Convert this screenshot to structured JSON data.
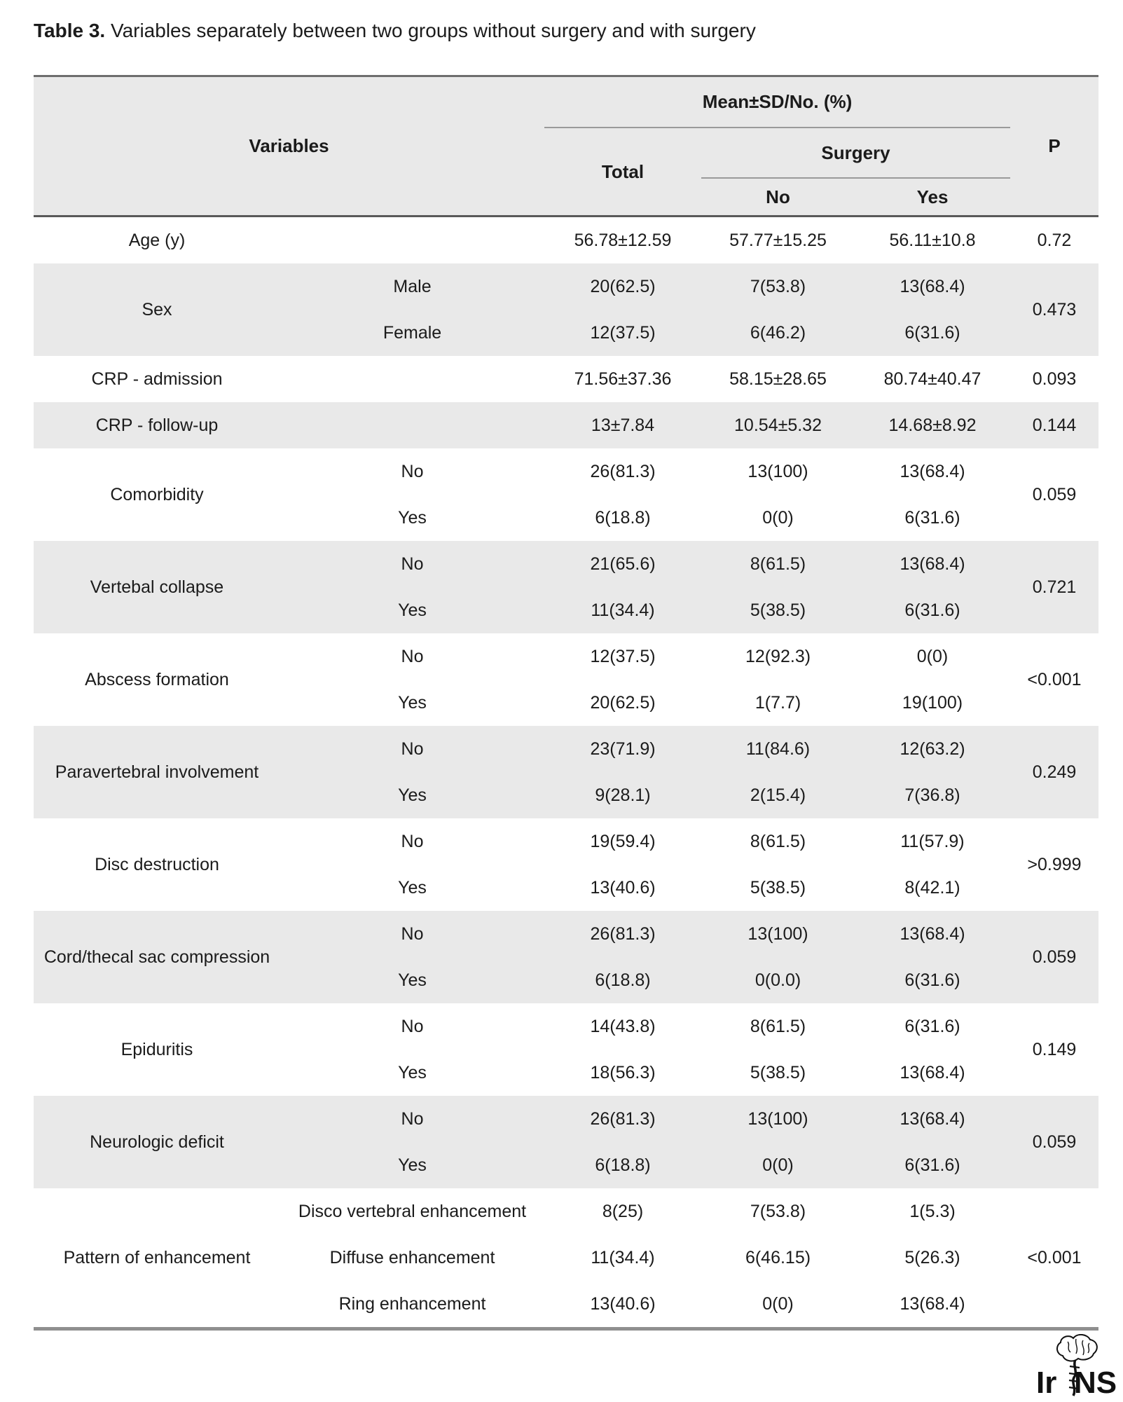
{
  "title": {
    "prefix": "Table 3.",
    "text": " Variables separately between two groups without surgery and with surgery"
  },
  "table": {
    "header": {
      "variables": "Variables",
      "mean_sd": "Mean±SD/No. (%)",
      "total": "Total",
      "surgery": "Surgery",
      "no": "No",
      "yes": "Yes",
      "p": "P"
    },
    "groups": [
      {
        "name": "Age (y)",
        "shaded": false,
        "p": "0.72",
        "rows": [
          {
            "label": "",
            "total": "56.78±12.59",
            "no": "57.77±15.25",
            "yes": "56.11±10.8"
          }
        ]
      },
      {
        "name": "Sex",
        "shaded": true,
        "p": "0.473",
        "rows": [
          {
            "label": "Male",
            "total": "20(62.5)",
            "no": "7(53.8)",
            "yes": "13(68.4)"
          },
          {
            "label": "Female",
            "total": "12(37.5)",
            "no": "6(46.2)",
            "yes": "6(31.6)"
          }
        ]
      },
      {
        "name": "CRP - admission",
        "shaded": false,
        "p": "0.093",
        "rows": [
          {
            "label": "",
            "total": "71.56±37.36",
            "no": "58.15±28.65",
            "yes": "80.74±40.47"
          }
        ]
      },
      {
        "name": "CRP - follow-up",
        "shaded": true,
        "p": "0.144",
        "rows": [
          {
            "label": "",
            "total": "13±7.84",
            "no": "10.54±5.32",
            "yes": "14.68±8.92"
          }
        ]
      },
      {
        "name": "Comorbidity",
        "shaded": false,
        "p": "0.059",
        "rows": [
          {
            "label": "No",
            "total": "26(81.3)",
            "no": "13(100)",
            "yes": "13(68.4)"
          },
          {
            "label": "Yes",
            "total": "6(18.8)",
            "no": "0(0)",
            "yes": "6(31.6)"
          }
        ]
      },
      {
        "name": "Vertebal collapse",
        "shaded": true,
        "p": "0.721",
        "rows": [
          {
            "label": "No",
            "total": "21(65.6)",
            "no": "8(61.5)",
            "yes": "13(68.4)"
          },
          {
            "label": "Yes",
            "total": "11(34.4)",
            "no": "5(38.5)",
            "yes": "6(31.6)"
          }
        ]
      },
      {
        "name": "Abscess formation",
        "shaded": false,
        "p": "<0.001",
        "rows": [
          {
            "label": "No",
            "total": "12(37.5)",
            "no": "12(92.3)",
            "yes": "0(0)"
          },
          {
            "label": "Yes",
            "total": "20(62.5)",
            "no": "1(7.7)",
            "yes": "19(100)"
          }
        ]
      },
      {
        "name": "Paravertebral involvement",
        "shaded": true,
        "p": "0.249",
        "rows": [
          {
            "label": "No",
            "total": "23(71.9)",
            "no": "11(84.6)",
            "yes": "12(63.2)"
          },
          {
            "label": "Yes",
            "total": "9(28.1)",
            "no": "2(15.4)",
            "yes": "7(36.8)"
          }
        ]
      },
      {
        "name": "Disc destruction",
        "shaded": false,
        "p": ">0.999",
        "rows": [
          {
            "label": "No",
            "total": "19(59.4)",
            "no": "8(61.5)",
            "yes": "11(57.9)"
          },
          {
            "label": "Yes",
            "total": "13(40.6)",
            "no": "5(38.5)",
            "yes": "8(42.1)"
          }
        ]
      },
      {
        "name": "Cord/thecal sac compression",
        "shaded": true,
        "p": "0.059",
        "rows": [
          {
            "label": "No",
            "total": "26(81.3)",
            "no": "13(100)",
            "yes": "13(68.4)"
          },
          {
            "label": "Yes",
            "total": "6(18.8)",
            "no": "0(0.0)",
            "yes": "6(31.6)"
          }
        ]
      },
      {
        "name": "Epiduritis",
        "shaded": false,
        "p": "0.149",
        "rows": [
          {
            "label": "No",
            "total": "14(43.8)",
            "no": "8(61.5)",
            "yes": "6(31.6)"
          },
          {
            "label": "Yes",
            "total": "18(56.3)",
            "no": "5(38.5)",
            "yes": "13(68.4)"
          }
        ]
      },
      {
        "name": "Neurologic deficit",
        "shaded": true,
        "p": "0.059",
        "rows": [
          {
            "label": "No",
            "total": "26(81.3)",
            "no": "13(100)",
            "yes": "13(68.4)"
          },
          {
            "label": "Yes",
            "total": "6(18.8)",
            "no": "0(0)",
            "yes": "6(31.6)"
          }
        ]
      },
      {
        "name": "Pattern of enhancement",
        "shaded": false,
        "p": "<0.001",
        "rows": [
          {
            "label": "Disco vertebral enhancement",
            "total": "8(25)",
            "no": "7(53.8)",
            "yes": "1(5.3)"
          },
          {
            "label": "Diffuse enhancement",
            "total": "11(34.4)",
            "no": "6(46.15)",
            "yes": "5(26.3)"
          },
          {
            "label": "Ring enhancement",
            "total": "13(40.6)",
            "no": "0(0)",
            "yes": "13(68.4)"
          }
        ]
      }
    ]
  },
  "logo": {
    "left": "Ir",
    "right": "NS"
  },
  "colors": {
    "stripe": "#e9e9e9",
    "header_bg": "#e9e9e9",
    "border_top": "#6e6e6e",
    "border_header": "#595959",
    "border_inner": "#9a9a9a",
    "border_bottom": "#8f8f8f",
    "text": "#1b1b1b"
  }
}
